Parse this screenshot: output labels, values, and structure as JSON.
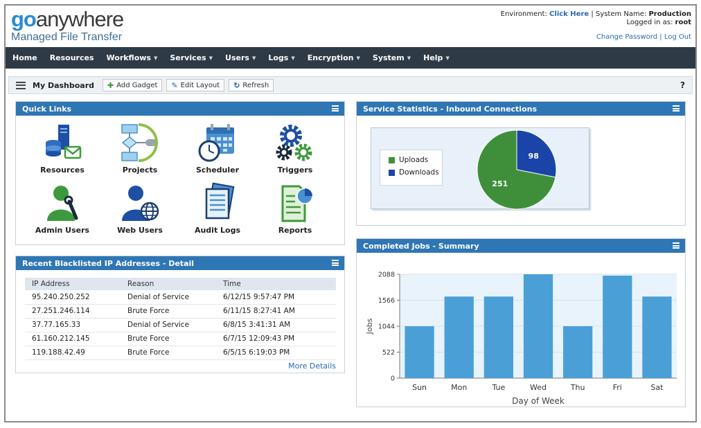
{
  "header": {
    "logo_go": "go",
    "logo_rest": "anywhere",
    "logo_sub": "Managed File Transfer",
    "environment_label": "Environment:",
    "environment_link": "Click Here",
    "system_name_label": "System Name:",
    "system_name": "Production",
    "logged_in_label": "Logged in as:",
    "user": "root",
    "change_password": "Change Password",
    "log_out": "Log Out"
  },
  "nav": {
    "items": [
      "Home",
      "Resources",
      "Workflows",
      "Services",
      "Users",
      "Logs",
      "Encryption",
      "System",
      "Help"
    ]
  },
  "dashboard": {
    "title": "My Dashboard",
    "add_gadget": "Add Gadget",
    "edit_layout": "Edit Layout",
    "refresh": "Refresh",
    "help": "?"
  },
  "quick_links": {
    "title": "Quick Links",
    "items": [
      "Resources",
      "Projects",
      "Scheduler",
      "Triggers",
      "Admin Users",
      "Web Users",
      "Audit Logs",
      "Reports"
    ]
  },
  "blacklist": {
    "title": "Recent Blacklisted IP Addresses - Detail",
    "columns": [
      "IP Address",
      "Reason",
      "Time"
    ],
    "rows": [
      [
        "95.240.250.252",
        "Denial of Service",
        "6/12/15 9:57:47 PM"
      ],
      [
        "27.251.246.114",
        "Brute Force",
        "6/11/15 8:27:41 AM"
      ],
      [
        "37.77.165.33",
        "Denial of Service",
        "6/8/15 3:41:31 AM"
      ],
      [
        "61.160.212.145",
        "Brute Force",
        "6/7/15 12:09:43 PM"
      ],
      [
        "119.188.42.49",
        "Brute Force",
        "6/5/15 6:19:03 PM"
      ]
    ],
    "more": "More Details"
  },
  "service_stats": {
    "title": "Service Statistics - Inbound Connections",
    "legend": [
      "Uploads",
      "Downloads"
    ],
    "colors": {
      "uploads": "#3f8f3a",
      "downloads": "#1a44a8"
    }
  },
  "completed_jobs": {
    "title": "Completed Jobs - Summary",
    "bar_color": "#4aa0d6"
  },
  "chart_data": [
    {
      "type": "pie",
      "categories": [
        "Uploads",
        "Downloads"
      ],
      "values": [
        251,
        98
      ],
      "title": "",
      "legend": "left"
    },
    {
      "type": "bar",
      "categories": [
        "Sun",
        "Mon",
        "Tue",
        "Wed",
        "Thu",
        "Fri",
        "Sat"
      ],
      "values": [
        1044,
        1640,
        1640,
        2088,
        1044,
        2060,
        1640
      ],
      "yticks": [
        0,
        522,
        1044,
        1566,
        2088
      ],
      "ylim": [
        0,
        2088
      ],
      "xlabel": "Day of Week",
      "ylabel": "Jobs",
      "title": ""
    }
  ]
}
